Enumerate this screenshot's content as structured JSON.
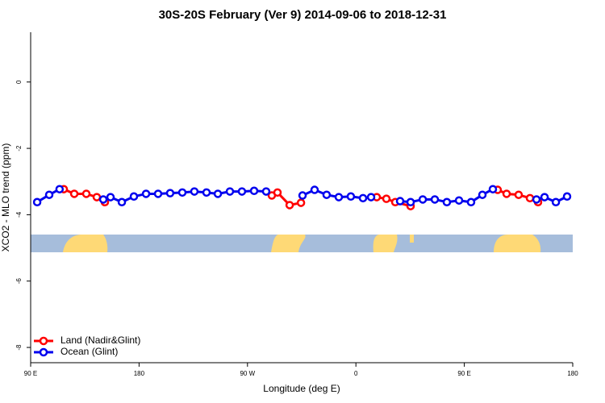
{
  "chart_data": {
    "type": "line",
    "title": "30S-20S February (Ver 9)   2014-09-06 to 2018-12-31",
    "x_label": "Longitude (deg E)",
    "y_label": "XCO2 - MLO trend (ppm)",
    "xlim": [
      90,
      540
    ],
    "xticks": [
      {
        "value": 90,
        "label": "90 E"
      },
      180,
      {
        "value": 270,
        "label": "90 W"
      },
      {
        "value": 360,
        "label": "0"
      },
      {
        "value": 450,
        "label": "90 E"
      },
      {
        "value": 540,
        "label": "180"
      }
    ],
    "ylim": [
      -8.46,
      1.5
    ],
    "yticks": [
      0,
      -2,
      -4,
      -6,
      -8
    ],
    "legend": "bottom-left",
    "series": [
      {
        "name": "Land (Nadir&Glint)",
        "color": "#ff0000",
        "x": [
          117.5,
          126.2,
          136.2,
          144.9,
          151.6,
          null,
          290.2,
          294.9,
          305,
          314.4,
          null,
          377.3,
          385.3,
          392.7,
          405.4,
          null,
          477.7,
          485.1,
          495.1,
          504.5,
          511.2
        ],
        "values": [
          -3.23,
          -3.37,
          -3.37,
          -3.47,
          -3.62,
          null,
          -3.42,
          -3.33,
          -3.71,
          -3.64,
          null,
          -3.47,
          -3.52,
          -3.62,
          -3.74,
          null,
          -3.25,
          -3.37,
          -3.4,
          -3.5,
          -3.62
        ]
      },
      {
        "name": "Ocean (Glint)",
        "color": "#0000ee",
        "x": [
          95.4,
          105.4,
          114,
          null,
          150.3,
          156.3,
          165.7,
          175.7,
          185.8,
          195.8,
          205.8,
          215.9,
          225.9,
          236,
          245.4,
          255.4,
          265.4,
          275.5,
          285.5,
          null,
          315.7,
          325.7,
          335.7,
          345.8,
          355.8,
          365.9,
          372.6,
          null,
          396.7,
          405.4,
          415.5,
          425.5,
          435.5,
          445.6,
          455.6,
          465,
          473.7,
          null,
          509.9,
          516.6,
          526,
          535.3
        ],
        "values": [
          -3.62,
          -3.4,
          -3.23,
          null,
          -3.54,
          -3.47,
          -3.62,
          -3.45,
          -3.37,
          -3.37,
          -3.35,
          -3.33,
          -3.3,
          -3.33,
          -3.37,
          -3.3,
          -3.3,
          -3.28,
          -3.3,
          null,
          -3.42,
          -3.25,
          -3.4,
          -3.47,
          -3.45,
          -3.5,
          -3.47,
          null,
          -3.59,
          -3.62,
          -3.54,
          -3.54,
          -3.62,
          -3.57,
          -3.62,
          -3.4,
          -3.23,
          null,
          -3.54,
          -3.47,
          -3.62,
          -3.45
        ]
      }
    ]
  }
}
